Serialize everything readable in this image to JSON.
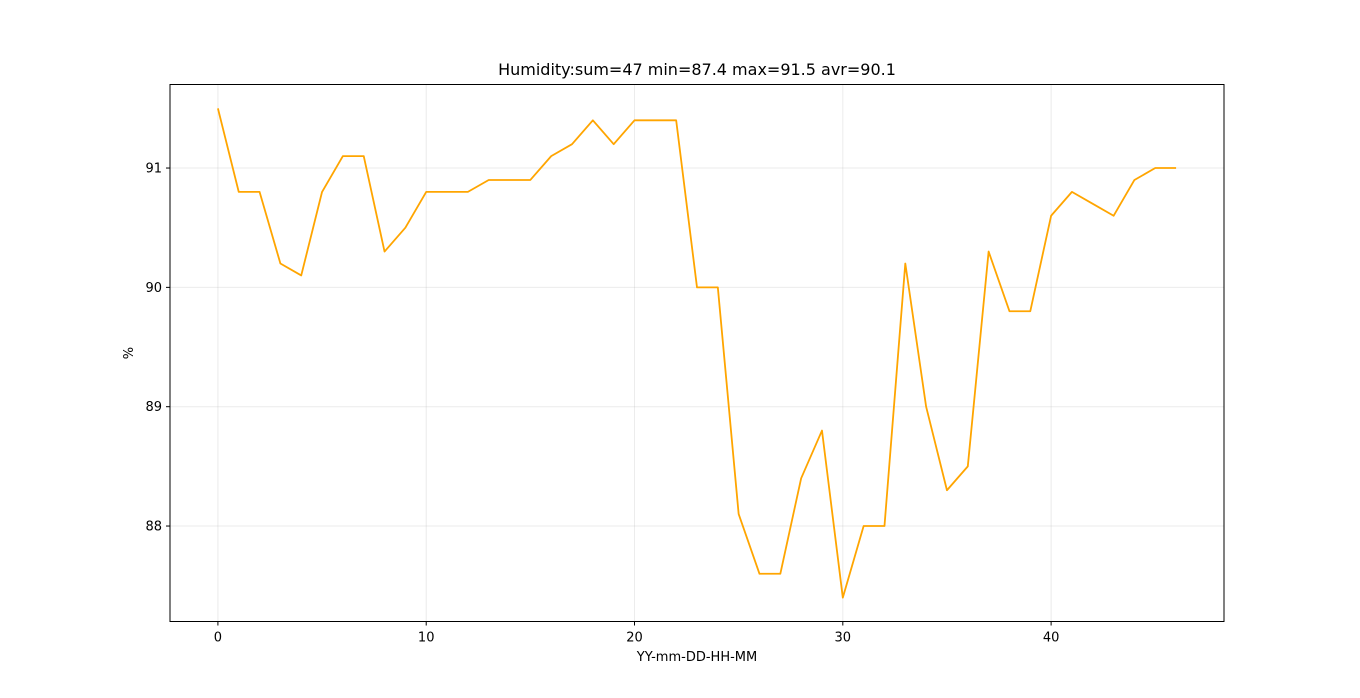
{
  "chart_data": {
    "type": "line",
    "title": "Humidity:sum=47 min=87.4 max=91.5 avr=90.1",
    "xlabel": "YY-mm-DD-HH-MM",
    "ylabel": "%",
    "xlim": [
      -2.3,
      48.3
    ],
    "ylim": [
      87.2,
      91.7
    ],
    "xticks": [
      0,
      10,
      20,
      30,
      40
    ],
    "yticks": [
      88,
      89,
      90,
      91
    ],
    "grid": true,
    "line_color": "#ffa500",
    "series": [
      {
        "x": [
          0,
          1,
          2,
          3,
          4,
          5,
          6,
          7,
          8,
          9,
          10,
          11,
          12,
          13,
          14,
          15,
          16,
          17,
          18,
          19,
          20,
          21,
          22,
          23,
          24,
          25,
          26,
          27,
          28,
          29,
          30,
          31,
          32,
          33,
          34,
          35,
          36,
          37,
          38,
          39,
          40,
          41,
          42,
          43,
          44,
          45,
          46
        ],
        "values": [
          91.5,
          90.8,
          90.8,
          90.2,
          90.1,
          90.8,
          91.1,
          91.1,
          90.3,
          90.5,
          90.8,
          90.8,
          90.8,
          90.9,
          90.9,
          90.9,
          91.1,
          91.2,
          91.4,
          91.2,
          91.4,
          91.4,
          91.4,
          90.0,
          90.0,
          88.1,
          87.6,
          87.6,
          88.4,
          88.8,
          87.4,
          88.0,
          88.0,
          90.2,
          89.0,
          88.3,
          88.5,
          90.3,
          89.8,
          89.8,
          90.6,
          90.8,
          90.7,
          90.6,
          90.9,
          91.0,
          91.0
        ]
      }
    ]
  }
}
